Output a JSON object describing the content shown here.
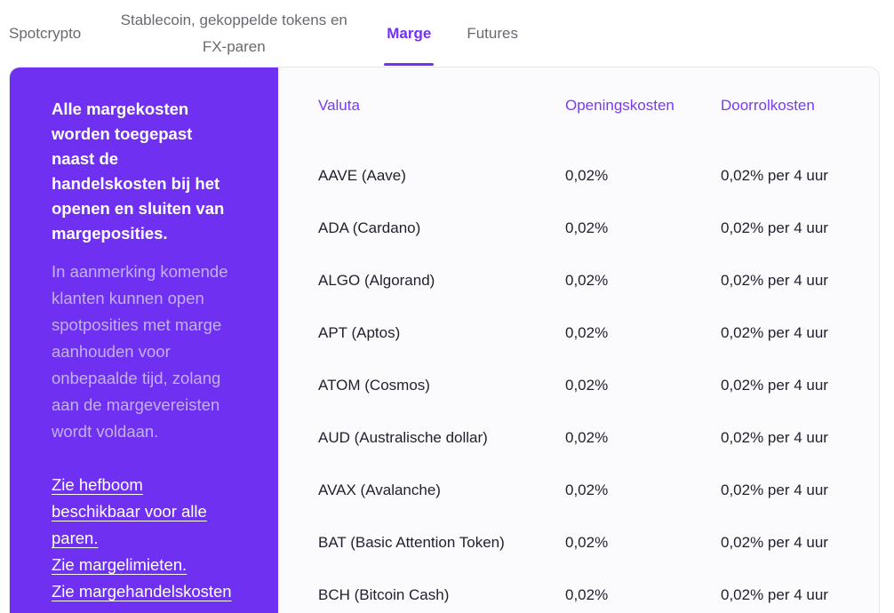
{
  "tabs": [
    {
      "label": "Spotcrypto",
      "active": false
    },
    {
      "label": "Stablecoin, gekoppelde tokens en FX-paren",
      "active": false
    },
    {
      "label": "Marge",
      "active": true
    },
    {
      "label": "Futures",
      "active": false
    }
  ],
  "info_panel": {
    "headline": "Alle margekosten worden toegepast naast de handelskosten bij het openen en sluiten van margeposities.",
    "body": "In aanmerking komende klanten kunnen open spotposities met marge aanhouden voor onbepaalde tijd, zolang aan de margevereisten wordt voldaan.",
    "links": [
      "Zie hefboom beschikbaar voor alle paren.",
      "Zie margelimieten.",
      "Zie margehandelskosten"
    ]
  },
  "table": {
    "columns": [
      "Valuta",
      "Openingskosten",
      "Doorrolkosten"
    ],
    "rows": [
      {
        "currency": "AAVE (Aave)",
        "opening_fee": "0,02%",
        "rollover_fee": "0,02% per 4 uur"
      },
      {
        "currency": "ADA (Cardano)",
        "opening_fee": "0,02%",
        "rollover_fee": "0,02% per 4 uur"
      },
      {
        "currency": "ALGO (Algorand)",
        "opening_fee": "0,02%",
        "rollover_fee": "0,02% per 4 uur"
      },
      {
        "currency": "APT (Aptos)",
        "opening_fee": "0,02%",
        "rollover_fee": "0,02% per 4 uur"
      },
      {
        "currency": "ATOM (Cosmos)",
        "opening_fee": "0,02%",
        "rollover_fee": "0,02% per 4 uur"
      },
      {
        "currency": "AUD (Australische dollar)",
        "opening_fee": "0,02%",
        "rollover_fee": "0,02% per 4 uur"
      },
      {
        "currency": "AVAX (Avalanche)",
        "opening_fee": "0,02%",
        "rollover_fee": "0,02% per 4 uur"
      },
      {
        "currency": "BAT (Basic Attention Token)",
        "opening_fee": "0,02%",
        "rollover_fee": "0,02% per 4 uur"
      },
      {
        "currency": "BCH (Bitcoin Cash)",
        "opening_fee": "0,02%",
        "rollover_fee": "0,02% per 4 uur"
      }
    ]
  },
  "colors": {
    "accent": "#7132F5",
    "panel_bg": "#6F30F2",
    "panel_muted_text": "#C3AFF2",
    "table_header_text": "#7A3BEF",
    "table_text": "#211F2D",
    "tab_text": "#6A6972",
    "card_bg": "#FBFBFD",
    "card_border": "#E8E7EB"
  }
}
